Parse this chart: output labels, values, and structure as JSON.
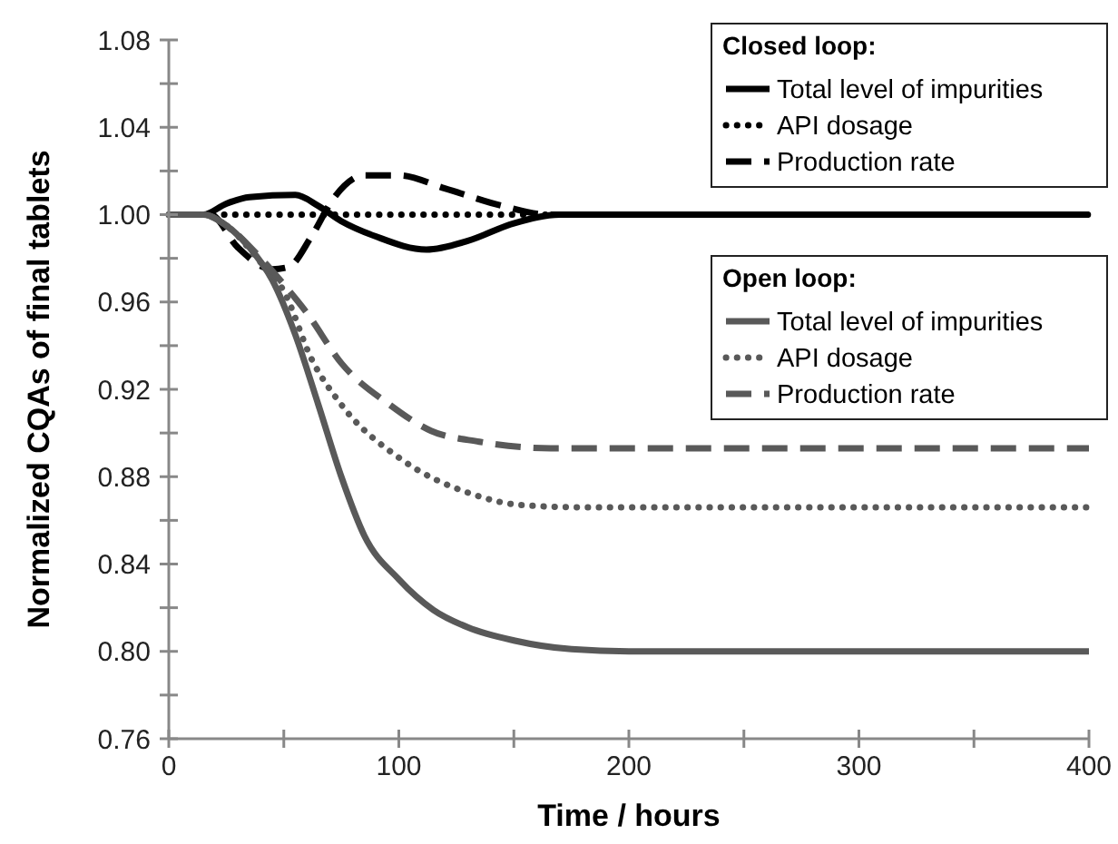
{
  "chart_data": {
    "type": "line",
    "xlabel": "Time / hours",
    "ylabel": "Normalized CQAs of final tablets",
    "xlim": [
      0,
      400
    ],
    "xticks": [
      0,
      {
        "value": 50,
        "label": null
      },
      100,
      {
        "value": 150,
        "label": null
      },
      200,
      {
        "value": 250,
        "label": null
      },
      300,
      {
        "value": 350,
        "label": null
      },
      400
    ],
    "ylim": [
      0.76,
      1.08
    ],
    "yticks": [
      {
        "value": 0.76,
        "label": "0.76"
      },
      {
        "value": 0.78,
        "label": null
      },
      {
        "value": 0.8,
        "label": "0.80"
      },
      {
        "value": 0.82,
        "label": null
      },
      {
        "value": 0.84,
        "label": "0.84"
      },
      {
        "value": 0.86,
        "label": null
      },
      {
        "value": 0.88,
        "label": "0.88"
      },
      {
        "value": 0.9,
        "label": null
      },
      {
        "value": 0.92,
        "label": "0.92"
      },
      {
        "value": 0.94,
        "label": null
      },
      {
        "value": 0.96,
        "label": "0.96"
      },
      {
        "value": 0.98,
        "label": null
      },
      {
        "value": 1.0,
        "label": "1.00"
      },
      {
        "value": 1.02,
        "label": null
      },
      {
        "value": 1.04,
        "label": "1.04"
      },
      {
        "value": 1.06,
        "label": null
      },
      {
        "value": 1.08,
        "label": "1.08"
      }
    ],
    "grid": false,
    "legend": "top right",
    "annotations": [
      "Closed loop:",
      "Open loop:"
    ],
    "series": [
      {
        "name": "Total level of impurities",
        "color": "#000000",
        "line_style": "solid",
        "x": [
          0,
          15,
          25,
          35,
          55,
          65,
          75,
          90,
          112,
          130,
          150,
          170,
          200,
          400
        ],
        "values": [
          1,
          1,
          1.005,
          1.008,
          1.009,
          1.004,
          0.997,
          0.99,
          0.984,
          0.988,
          0.996,
          1.0,
          1.0,
          1.0
        ]
      },
      {
        "name": "API dosage",
        "color": "#000000",
        "line_style": "dotted",
        "x": [
          0,
          400
        ],
        "values": [
          1,
          1
        ]
      },
      {
        "name": "Production rate",
        "color": "#000000",
        "line_style": "dashed",
        "x": [
          0,
          18,
          30,
          45,
          52,
          62,
          72,
          85,
          100,
          120,
          145,
          165,
          400
        ],
        "values": [
          1,
          1,
          0.985,
          0.975,
          0.976,
          0.99,
          1.008,
          1.018,
          1.018,
          1.012,
          1.004,
          1.0,
          1.0
        ]
      },
      {
        "name": "Total level of impurities",
        "color": "#595959",
        "line_style": "solid",
        "x": [
          0,
          15,
          25,
          35,
          45,
          55,
          65,
          75,
          85,
          100,
          115,
          130,
          150,
          175,
          200,
          400
        ],
        "values": [
          1,
          1,
          0.995,
          0.985,
          0.97,
          0.945,
          0.913,
          0.88,
          0.853,
          0.833,
          0.819,
          0.811,
          0.805,
          0.801,
          0.8,
          0.8
        ]
      },
      {
        "name": "API dosage",
        "color": "#595959",
        "line_style": "dotted",
        "x": [
          0,
          15,
          25,
          40,
          50,
          62,
          75,
          101,
          132,
          153,
          180,
          400
        ],
        "values": [
          1,
          1,
          0.995,
          0.978,
          0.965,
          0.934,
          0.913,
          0.888,
          0.872,
          0.867,
          0.866,
          0.866
        ]
      },
      {
        "name": "Production rate",
        "color": "#595959",
        "line_style": "dashed",
        "x": [
          0,
          15,
          25,
          40,
          50,
          60,
          75,
          96,
          114,
          135,
          166,
          400
        ],
        "values": [
          1,
          1,
          0.995,
          0.98,
          0.968,
          0.955,
          0.932,
          0.913,
          0.901,
          0.896,
          0.893,
          0.893
        ]
      }
    ]
  }
}
